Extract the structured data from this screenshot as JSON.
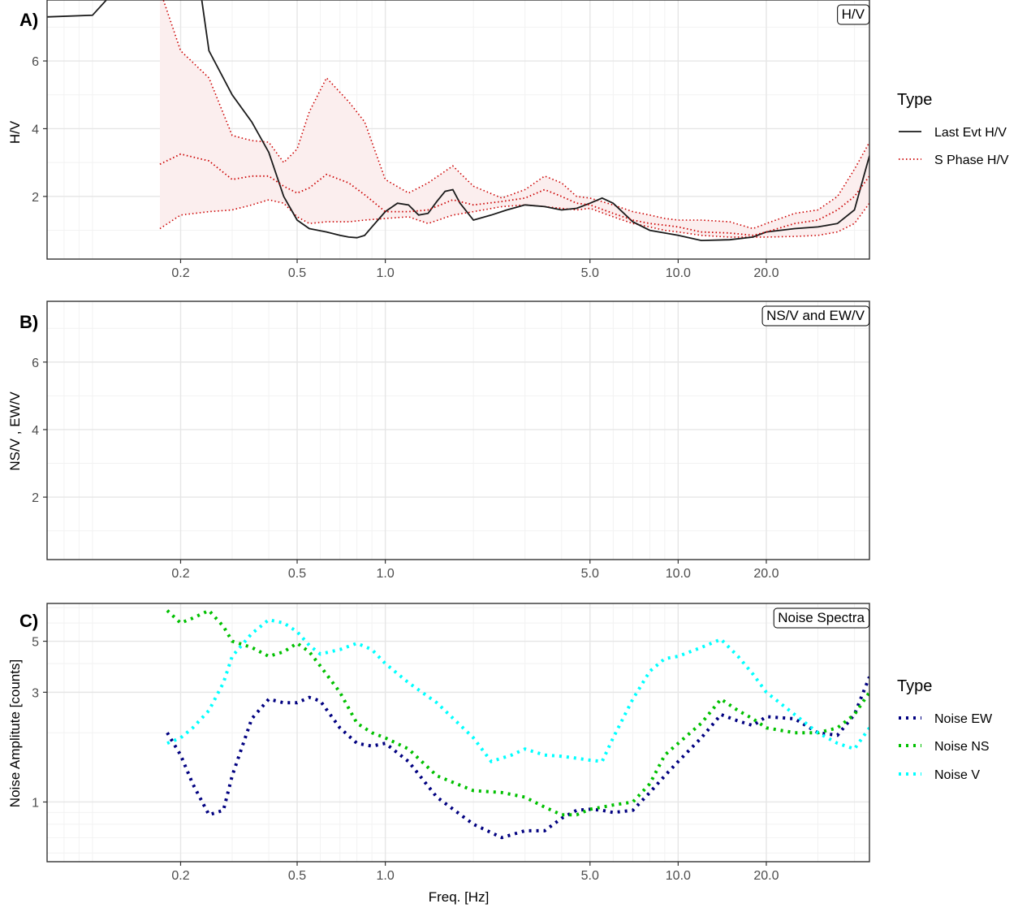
{
  "chart_data": [
    {
      "type": "line",
      "panel_tag": "A)",
      "strip": "H/V",
      "ylabel": "H/V",
      "xlabel": "",
      "x_scale": "log",
      "xlim": [
        0.07,
        45
      ],
      "ylim": [
        0.15,
        7.8
      ],
      "x_ticks": [
        0.2,
        0.5,
        1.0,
        5.0,
        10.0,
        20.0
      ],
      "x_tick_labels": [
        "0.2",
        "0.5",
        "1.0",
        "5.0",
        "10.0",
        "20.0"
      ],
      "y_ticks": [
        2,
        4,
        6
      ],
      "y_tick_labels": [
        "2",
        "4",
        "6"
      ],
      "band": {
        "name": "S Phase H/V range",
        "fill": "#fbeeee",
        "x": [
          0.17,
          0.2,
          0.25,
          0.3,
          0.35,
          0.4,
          0.45,
          0.5,
          0.55,
          0.63,
          0.75,
          0.85,
          1.0,
          1.2,
          1.4,
          1.7,
          2.0,
          2.5,
          3.0,
          3.5,
          4.0,
          4.5,
          5.0,
          6.0,
          7.0,
          8.0,
          9.0,
          10.0,
          12.0,
          15.0,
          18.0,
          20.0,
          25.0,
          30.0,
          35.0,
          40.0,
          45.0
        ],
        "lower": [
          1.05,
          1.45,
          1.55,
          1.6,
          1.75,
          1.9,
          1.8,
          1.4,
          1.2,
          1.25,
          1.25,
          1.3,
          1.35,
          1.4,
          1.2,
          1.45,
          1.55,
          1.7,
          1.75,
          1.7,
          1.65,
          1.6,
          1.65,
          1.4,
          1.2,
          1.1,
          1.0,
          0.95,
          0.85,
          0.8,
          0.8,
          0.8,
          0.82,
          0.85,
          0.95,
          1.2,
          1.8
        ],
        "upper": [
          8.1,
          6.3,
          5.5,
          3.8,
          3.65,
          3.6,
          3.0,
          3.4,
          4.5,
          5.5,
          4.8,
          4.2,
          2.5,
          2.1,
          2.4,
          2.9,
          2.3,
          1.95,
          2.2,
          2.6,
          2.4,
          2.0,
          1.95,
          1.75,
          1.55,
          1.45,
          1.35,
          1.3,
          1.3,
          1.25,
          1.05,
          1.2,
          1.5,
          1.6,
          2.0,
          2.8,
          3.6
        ]
      },
      "series": [
        {
          "name": "Last Evt H/V",
          "color": "#1a1a1a",
          "style": "solid",
          "x": [
            0.07,
            0.1,
            0.12,
            0.16,
            0.2,
            0.23,
            0.25,
            0.3,
            0.35,
            0.4,
            0.45,
            0.5,
            0.55,
            0.63,
            0.7,
            0.75,
            0.8,
            0.85,
            0.9,
            1.0,
            1.1,
            1.2,
            1.3,
            1.4,
            1.5,
            1.6,
            1.7,
            1.8,
            2.0,
            2.3,
            2.6,
            3.0,
            3.5,
            4.0,
            4.5,
            5.0,
            5.5,
            6.0,
            7.0,
            8.0,
            10.0,
            12.0,
            15.0,
            18.0,
            20.0,
            25.0,
            30.0,
            35.0,
            40.0,
            45.0
          ],
          "y": [
            7.3,
            7.35,
            8.1,
            8.6,
            8.6,
            8.5,
            6.3,
            5.0,
            4.2,
            3.3,
            2.0,
            1.3,
            1.05,
            0.95,
            0.85,
            0.8,
            0.78,
            0.85,
            1.1,
            1.55,
            1.8,
            1.75,
            1.45,
            1.5,
            1.85,
            2.15,
            2.2,
            1.8,
            1.3,
            1.45,
            1.6,
            1.75,
            1.7,
            1.6,
            1.65,
            1.8,
            1.95,
            1.8,
            1.25,
            1.0,
            0.85,
            0.7,
            0.72,
            0.8,
            0.95,
            1.05,
            1.1,
            1.2,
            1.6,
            3.2
          ]
        },
        {
          "name": "S Phase H/V",
          "color": "#cc0000",
          "style": "dotted",
          "x": [
            0.17,
            0.2,
            0.25,
            0.3,
            0.35,
            0.4,
            0.45,
            0.5,
            0.55,
            0.63,
            0.75,
            0.85,
            1.0,
            1.2,
            1.4,
            1.7,
            2.0,
            2.5,
            3.0,
            3.5,
            4.0,
            4.5,
            5.0,
            6.0,
            7.0,
            8.0,
            9.0,
            10.0,
            12.0,
            15.0,
            18.0,
            20.0,
            25.0,
            30.0,
            35.0,
            40.0,
            45.0
          ],
          "y": [
            2.95,
            3.25,
            3.05,
            2.5,
            2.6,
            2.6,
            2.3,
            2.1,
            2.25,
            2.65,
            2.4,
            2.05,
            1.55,
            1.55,
            1.6,
            1.9,
            1.75,
            1.85,
            1.95,
            2.2,
            2.0,
            1.8,
            1.75,
            1.5,
            1.3,
            1.2,
            1.15,
            1.1,
            0.95,
            0.92,
            0.85,
            0.95,
            1.2,
            1.3,
            1.6,
            2.0,
            2.6
          ]
        }
      ]
    },
    {
      "type": "line",
      "panel_tag": "B)",
      "strip": "NS/V and EW/V",
      "ylabel": "NS/V , EW/V",
      "xlabel": "",
      "x_scale": "log",
      "xlim": [
        0.07,
        45
      ],
      "ylim": [
        0.15,
        7.8
      ],
      "x_ticks": [
        0.2,
        0.5,
        1.0,
        5.0,
        10.0,
        20.0
      ],
      "x_tick_labels": [
        "0.2",
        "0.5",
        "1.0",
        "5.0",
        "10.0",
        "20.0"
      ],
      "y_ticks": [
        2,
        4,
        6
      ],
      "y_tick_labels": [
        "2",
        "4",
        "6"
      ],
      "series": []
    },
    {
      "type": "line",
      "panel_tag": "C)",
      "strip": "Noise Spectra",
      "ylabel": "Noise Amplitute [counts]",
      "xlabel": "Freq. [Hz]",
      "x_scale": "log",
      "y_scale": "log",
      "xlim": [
        0.07,
        45
      ],
      "ylim": [
        0.55,
        7.3
      ],
      "x_ticks": [
        0.2,
        0.5,
        1.0,
        5.0,
        10.0,
        20.0
      ],
      "x_tick_labels": [
        "0.2",
        "0.5",
        "1.0",
        "5.0",
        "10.0",
        "20.0"
      ],
      "y_ticks": [
        1,
        3,
        5
      ],
      "y_tick_labels": [
        "1",
        "3",
        "5"
      ],
      "series": [
        {
          "name": "Noise EW",
          "color": "#000080",
          "style": "dotted",
          "x": [
            0.18,
            0.2,
            0.22,
            0.25,
            0.28,
            0.3,
            0.35,
            0.4,
            0.45,
            0.5,
            0.55,
            0.6,
            0.7,
            0.8,
            0.9,
            1.0,
            1.2,
            1.5,
            2.0,
            2.5,
            3.0,
            3.5,
            4.0,
            4.5,
            5.0,
            5.5,
            6.0,
            7.0,
            8.0,
            9.0,
            10.0,
            12.0,
            14.0,
            16.0,
            18.0,
            20.0,
            25.0,
            30.0,
            35.0,
            40.0,
            45.0
          ],
          "y": [
            2.0,
            1.6,
            1.2,
            0.88,
            0.92,
            1.3,
            2.3,
            2.8,
            2.7,
            2.7,
            2.85,
            2.75,
            2.1,
            1.8,
            1.75,
            1.8,
            1.5,
            1.05,
            0.8,
            0.7,
            0.75,
            0.75,
            0.85,
            0.92,
            0.93,
            0.92,
            0.9,
            0.92,
            1.1,
            1.3,
            1.5,
            1.9,
            2.4,
            2.25,
            2.15,
            2.35,
            2.3,
            2.0,
            1.95,
            2.4,
            3.5
          ]
        },
        {
          "name": "Noise NS",
          "color": "#00c000",
          "style": "dotted",
          "x": [
            0.18,
            0.2,
            0.22,
            0.25,
            0.28,
            0.3,
            0.35,
            0.4,
            0.45,
            0.5,
            0.55,
            0.6,
            0.7,
            0.8,
            0.9,
            1.0,
            1.2,
            1.5,
            2.0,
            2.5,
            3.0,
            3.5,
            4.0,
            4.5,
            5.0,
            5.5,
            6.0,
            7.0,
            8.0,
            9.0,
            10.0,
            12.0,
            14.0,
            16.0,
            18.0,
            20.0,
            25.0,
            30.0,
            35.0,
            40.0,
            45.0
          ],
          "y": [
            6.8,
            6.0,
            6.3,
            6.8,
            5.8,
            5.0,
            4.7,
            4.3,
            4.5,
            4.9,
            4.5,
            3.9,
            3.0,
            2.2,
            2.0,
            1.9,
            1.7,
            1.3,
            1.12,
            1.1,
            1.05,
            0.95,
            0.88,
            0.88,
            0.93,
            0.95,
            0.97,
            1.0,
            1.2,
            1.6,
            1.8,
            2.2,
            2.8,
            2.5,
            2.3,
            2.1,
            2.0,
            2.0,
            2.1,
            2.4,
            3.0
          ]
        },
        {
          "name": "Noise V",
          "color": "#00ffff",
          "style": "dotted",
          "x": [
            0.18,
            0.2,
            0.22,
            0.25,
            0.28,
            0.3,
            0.35,
            0.4,
            0.45,
            0.5,
            0.55,
            0.6,
            0.7,
            0.8,
            0.9,
            1.0,
            1.2,
            1.5,
            2.0,
            2.3,
            2.7,
            3.0,
            3.5,
            4.0,
            4.5,
            5.0,
            5.5,
            6.0,
            7.0,
            8.0,
            9.0,
            10.0,
            12.0,
            14.0,
            16.0,
            18.0,
            20.0,
            25.0,
            30.0,
            35.0,
            40.0,
            45.0
          ],
          "y": [
            1.8,
            1.9,
            2.1,
            2.5,
            3.3,
            4.3,
            5.4,
            6.2,
            6.0,
            5.5,
            4.8,
            4.4,
            4.6,
            4.9,
            4.6,
            4.0,
            3.3,
            2.7,
            1.9,
            1.5,
            1.6,
            1.7,
            1.6,
            1.58,
            1.55,
            1.52,
            1.5,
            1.9,
            2.8,
            3.7,
            4.2,
            4.3,
            4.7,
            5.1,
            4.3,
            3.6,
            3.0,
            2.4,
            2.0,
            1.8,
            1.7,
            2.1
          ]
        }
      ]
    }
  ],
  "legends": [
    {
      "title": "Type",
      "items": [
        {
          "label": "Last Evt H/V",
          "color": "#1a1a1a",
          "style": "solid"
        },
        {
          "label": "S Phase H/V",
          "color": "#cc0000",
          "style": "dotted"
        }
      ]
    },
    {
      "title": "Type",
      "items": [
        {
          "label": "Noise EW",
          "color": "#000080",
          "style": "dotted"
        },
        {
          "label": "Noise NS",
          "color": "#00c000",
          "style": "dotted"
        },
        {
          "label": "Noise V",
          "color": "#00ffff",
          "style": "dotted"
        }
      ]
    }
  ]
}
